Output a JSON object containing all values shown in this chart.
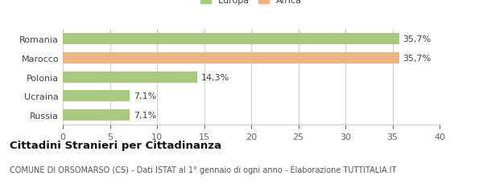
{
  "categories": [
    "Romania",
    "Marocco",
    "Polonia",
    "Ucraina",
    "Russia"
  ],
  "values": [
    35.7,
    35.7,
    14.3,
    7.1,
    7.1
  ],
  "bar_colors": [
    "#a8c97f",
    "#f0b482",
    "#a8c97f",
    "#a8c97f",
    "#a8c97f"
  ],
  "labels": [
    "35,7%",
    "35,7%",
    "14,3%",
    "7,1%",
    "7,1%"
  ],
  "legend_entries": [
    {
      "label": "Europa",
      "color": "#a8c97f"
    },
    {
      "label": "Africa",
      "color": "#f0b482"
    }
  ],
  "xlim": [
    0,
    40
  ],
  "xticks": [
    0,
    5,
    10,
    15,
    20,
    25,
    30,
    35,
    40
  ],
  "title": "Cittadini Stranieri per Cittadinanza",
  "subtitle": "COMUNE DI ORSOMARSO (CS) - Dati ISTAT al 1° gennaio di ogni anno - Elaborazione TUTTITALIA.IT",
  "background_color": "#ffffff",
  "grid_color": "#cccccc",
  "bar_edge_color": "none",
  "label_fontsize": 8.0,
  "tick_fontsize": 8.0,
  "title_fontsize": 9.5,
  "subtitle_fontsize": 7.0
}
